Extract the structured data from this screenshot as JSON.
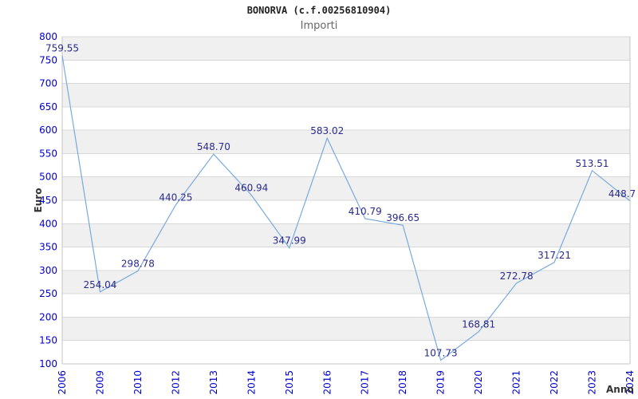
{
  "chart_data": {
    "type": "line",
    "title": "BONORVA (c.f.00256810904)",
    "subtitle": "Importi",
    "xlabel": "Anno",
    "ylabel": "Euro",
    "categories": [
      "2006",
      "2009",
      "2010",
      "2012",
      "2013",
      "2014",
      "2015",
      "2016",
      "2017",
      "2018",
      "2019",
      "2020",
      "2021",
      "2022",
      "2023",
      "2024"
    ],
    "values": [
      759.55,
      254.04,
      298.78,
      440.25,
      548.7,
      460.94,
      347.99,
      583.02,
      410.79,
      396.65,
      107.73,
      168.81,
      272.78,
      317.21,
      513.51,
      448.7
    ],
    "point_labels": [
      "759.55",
      "254.04",
      "298.78",
      "440.25",
      "548.70",
      "460.94",
      "347.99",
      "583.02",
      "410.79",
      "396.65",
      "107.73",
      "168.81",
      "272.78",
      "317.21",
      "513.51",
      "448.7"
    ],
    "ylim": [
      100,
      800
    ],
    "ytick_step": 50,
    "grid": true,
    "banded_background": true,
    "legend_position": "none",
    "colors": {
      "line": "#79aade",
      "tick_label": "#0000cc",
      "point_label": "#2a2a8f",
      "band": "#f0f0f0",
      "gridline": "#d8d8d8",
      "axis": "#c6c6c6",
      "title": "#222222",
      "subtitle": "#666666",
      "axis_title": "#333333"
    }
  }
}
